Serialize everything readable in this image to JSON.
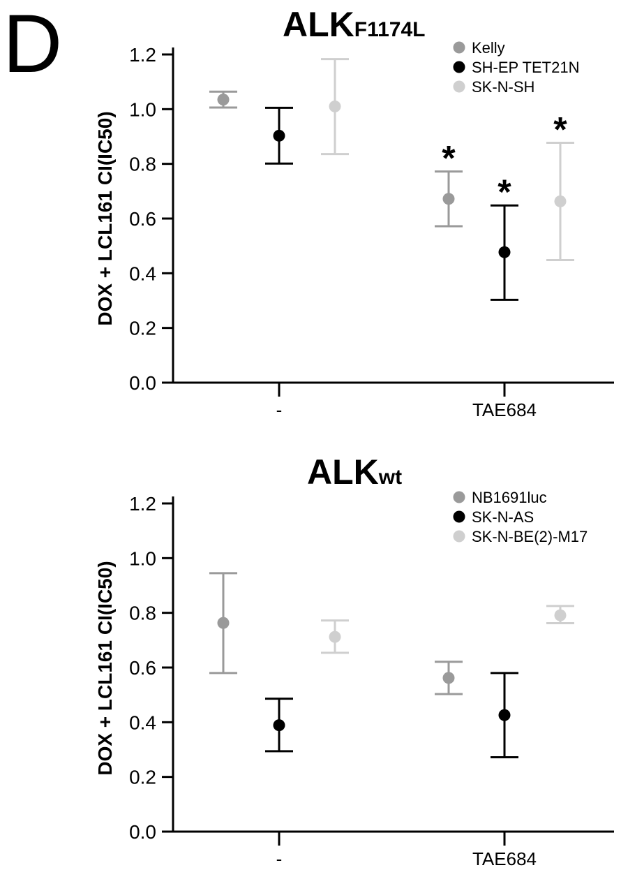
{
  "panel_label": "D",
  "colors": {
    "Kelly": "#9a9a9a",
    "SH-EP TET21N": "#000000",
    "SK-N-SH": "#cfcfcf",
    "NB1691luc": "#9a9a9a",
    "SK-N-AS": "#000000",
    "SK-N-BE(2)-M17": "#cfcfcf"
  },
  "chart_data": [
    {
      "type": "scatter",
      "title": "ALK",
      "title_subscript": "F1174L",
      "xlabel": "",
      "ylabel": "DOX + LCL161 CI(IC50)",
      "ylim": [
        0,
        1.2
      ],
      "yticks": [
        "0.0",
        "0.2",
        "0.4",
        "0.6",
        "0.8",
        "1.0",
        "1.2"
      ],
      "categories": [
        "-",
        "TAE684"
      ],
      "legend_position": "top-right",
      "series": [
        {
          "name": "Kelly",
          "color": "#9a9a9a",
          "values": [
            1.035,
            0.672
          ],
          "lower": [
            1.006,
            0.572
          ],
          "upper": [
            1.064,
            0.772
          ],
          "significance": [
            "",
            "*"
          ]
        },
        {
          "name": "SH-EP TET21N",
          "color": "#000000",
          "values": [
            0.903,
            0.477
          ],
          "lower": [
            0.801,
            0.303
          ],
          "upper": [
            1.005,
            0.648
          ],
          "significance": [
            "",
            "*"
          ]
        },
        {
          "name": "SK-N-SH",
          "color": "#cfcfcf",
          "values": [
            1.01,
            0.663
          ],
          "lower": [
            0.836,
            0.448
          ],
          "upper": [
            1.183,
            0.877
          ],
          "significance": [
            "",
            "*"
          ]
        }
      ]
    },
    {
      "type": "scatter",
      "title": "ALK",
      "title_subscript": "wt",
      "xlabel": "",
      "ylabel": "DOX + LCL161 CI(IC50)",
      "ylim": [
        0,
        1.2
      ],
      "yticks": [
        "0.0",
        "0.2",
        "0.4",
        "0.6",
        "0.8",
        "1.0",
        "1.2"
      ],
      "categories": [
        "-",
        "TAE684"
      ],
      "legend_position": "top-right",
      "series": [
        {
          "name": "NB1691luc",
          "color": "#9a9a9a",
          "values": [
            0.763,
            0.562
          ],
          "lower": [
            0.58,
            0.503
          ],
          "upper": [
            0.945,
            0.621
          ],
          "significance": [
            "",
            ""
          ]
        },
        {
          "name": "SK-N-AS",
          "color": "#000000",
          "values": [
            0.389,
            0.426
          ],
          "lower": [
            0.294,
            0.272
          ],
          "upper": [
            0.486,
            0.58
          ],
          "significance": [
            "",
            ""
          ]
        },
        {
          "name": "SK-N-BE(2)-M17",
          "color": "#cfcfcf",
          "values": [
            0.712,
            0.791
          ],
          "lower": [
            0.654,
            0.762
          ],
          "upper": [
            0.772,
            0.825
          ],
          "significance": [
            "",
            ""
          ]
        }
      ]
    }
  ]
}
